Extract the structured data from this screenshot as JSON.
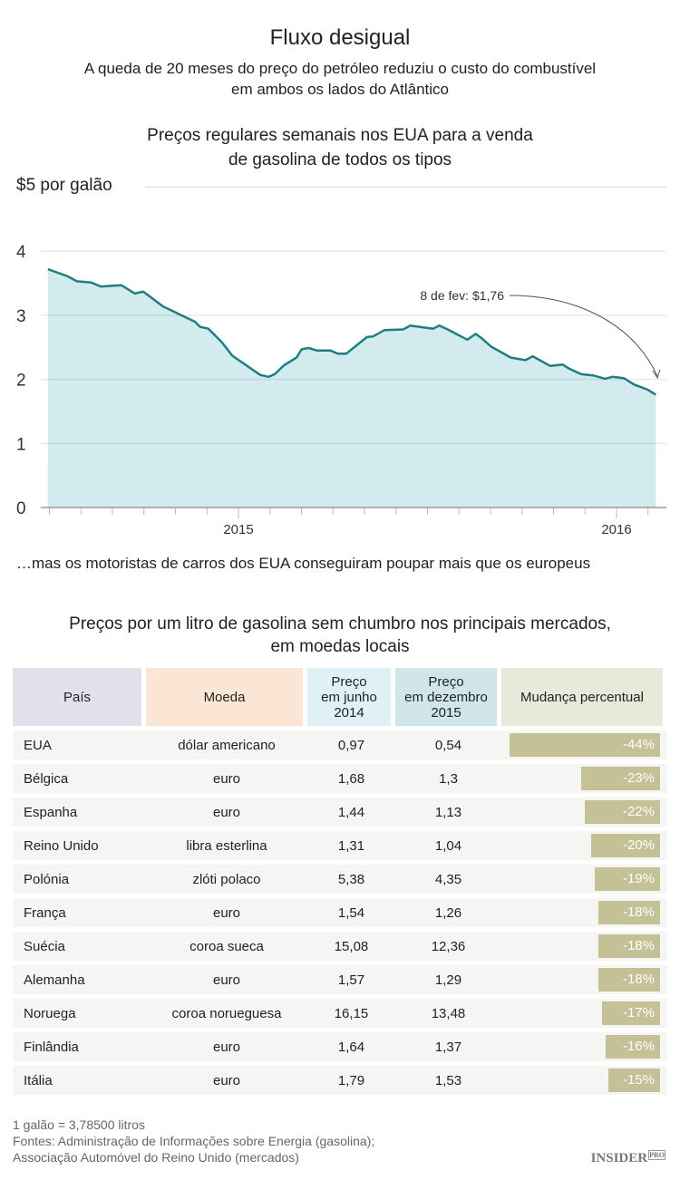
{
  "title": "Fluxo desigual",
  "subtitle": [
    "A queda de 20 meses do preço do petróleo reduziu o custo do combustível",
    "em ambos os lados do Atlântico"
  ],
  "chart_data": {
    "type": "area",
    "title": [
      "Preços regulares semanais nos EUA para a venda",
      "de gasolina de todos os tipos"
    ],
    "ylabel": "$5 por galão",
    "ylim": [
      0,
      5
    ],
    "yticks": [
      "0",
      "1",
      "2",
      "3",
      "4"
    ],
    "xticks": [
      "2015",
      "2016"
    ],
    "grid": true,
    "colors": {
      "line": "#1f7f80",
      "fill": "#d3ebee"
    },
    "annotation": "8 de fev: $1,76",
    "points": [
      [
        "2014-07-01",
        3.72
      ],
      [
        "2014-07-20",
        3.61
      ],
      [
        "2014-07-29",
        3.53
      ],
      [
        "2014-08-12",
        3.51
      ],
      [
        "2014-08-21",
        3.45
      ],
      [
        "2014-09-10",
        3.47
      ],
      [
        "2014-09-23",
        3.34
      ],
      [
        "2014-10-01",
        3.37
      ],
      [
        "2014-10-07",
        3.3
      ],
      [
        "2014-10-20",
        3.14
      ],
      [
        "2014-11-20",
        2.9
      ],
      [
        "2014-11-25",
        2.82
      ],
      [
        "2014-12-03",
        2.79
      ],
      [
        "2014-12-16",
        2.58
      ],
      [
        "2014-12-26",
        2.37
      ],
      [
        "2015-01-22",
        2.07
      ],
      [
        "2015-01-30",
        2.04
      ],
      [
        "2015-02-05",
        2.08
      ],
      [
        "2015-02-14",
        2.22
      ],
      [
        "2015-02-26",
        2.34
      ],
      [
        "2015-03-03",
        2.47
      ],
      [
        "2015-03-10",
        2.49
      ],
      [
        "2015-03-18",
        2.45
      ],
      [
        "2015-03-31",
        2.45
      ],
      [
        "2015-04-07",
        2.4
      ],
      [
        "2015-04-15",
        2.4
      ],
      [
        "2015-05-05",
        2.66
      ],
      [
        "2015-05-11",
        2.67
      ],
      [
        "2015-05-22",
        2.77
      ],
      [
        "2015-06-09",
        2.78
      ],
      [
        "2015-06-16",
        2.84
      ],
      [
        "2015-07-08",
        2.79
      ],
      [
        "2015-07-14",
        2.84
      ],
      [
        "2015-07-22",
        2.78
      ],
      [
        "2015-08-10",
        2.62
      ],
      [
        "2015-08-18",
        2.71
      ],
      [
        "2015-08-24",
        2.64
      ],
      [
        "2015-09-02",
        2.51
      ],
      [
        "2015-09-21",
        2.34
      ],
      [
        "2015-10-05",
        2.3
      ],
      [
        "2015-10-12",
        2.36
      ],
      [
        "2015-10-29",
        2.21
      ],
      [
        "2015-11-10",
        2.23
      ],
      [
        "2015-11-16",
        2.17
      ],
      [
        "2015-11-28",
        2.08
      ],
      [
        "2015-12-10",
        2.06
      ],
      [
        "2015-12-21",
        2.01
      ],
      [
        "2015-12-28",
        2.04
      ],
      [
        "2016-01-08",
        2.02
      ],
      [
        "2016-01-18",
        1.92
      ],
      [
        "2016-01-31",
        1.84
      ],
      [
        "2016-02-08",
        1.76
      ]
    ]
  },
  "bridge": "…mas os motoristas de carros dos EUA conseguiram poupar mais que os europeus",
  "table": {
    "title": [
      "Preços por um litro de gasolina sem chumbro nos principais mercados,",
      "em moedas locais"
    ],
    "headers": [
      "País",
      "Moeda",
      [
        "Preço",
        "em junho",
        "2014"
      ],
      [
        "Preço",
        "em dezembro",
        "2015"
      ],
      "Mudança percentual"
    ],
    "header_colors": [
      "#e3e0ec",
      "#fbe6d5",
      "#dff1f4",
      "#d1e6e9",
      "#e8e8db"
    ],
    "rows": [
      [
        "EUA",
        "dólar americano",
        "0,97",
        "0,54",
        "-44%",
        -44
      ],
      [
        "Bélgica",
        "euro",
        "1,68",
        "1,3",
        "-23%",
        -23
      ],
      [
        "Espanha",
        "euro",
        "1,44",
        "1,13",
        "-22%",
        -22
      ],
      [
        "Reino Unido",
        "libra esterlina",
        "1,31",
        "1,04",
        "-20%",
        -20
      ],
      [
        "Polónia",
        "zlóti polaco",
        "5,38",
        "4,35",
        "-19%",
        -19
      ],
      [
        "França",
        "euro",
        "1,54",
        "1,26",
        "-18%",
        -18
      ],
      [
        "Suécia",
        "coroa sueca",
        "15,08",
        "12,36",
        "-18%",
        -18
      ],
      [
        "Alemanha",
        "euro",
        "1,57",
        "1,29",
        "-18%",
        -18
      ],
      [
        "Noruega",
        "coroa norueguesa",
        "16,15",
        "13,48",
        "-17%",
        -17
      ],
      [
        "Finlândia",
        "euro",
        "1,64",
        "1,37",
        "-16%",
        -16
      ],
      [
        "Itália",
        "euro",
        "1,79",
        "1,53",
        "-15%",
        -15
      ]
    ]
  },
  "footer": [
    "1 galão = 3,78500 litros",
    "Fontes: Administração de Informações sobre Energia (gasolina);",
    "Associação Automóvel do Reino Unido (mercados)"
  ],
  "logo": {
    "main": "INSIDER",
    "sub": "PRO"
  }
}
